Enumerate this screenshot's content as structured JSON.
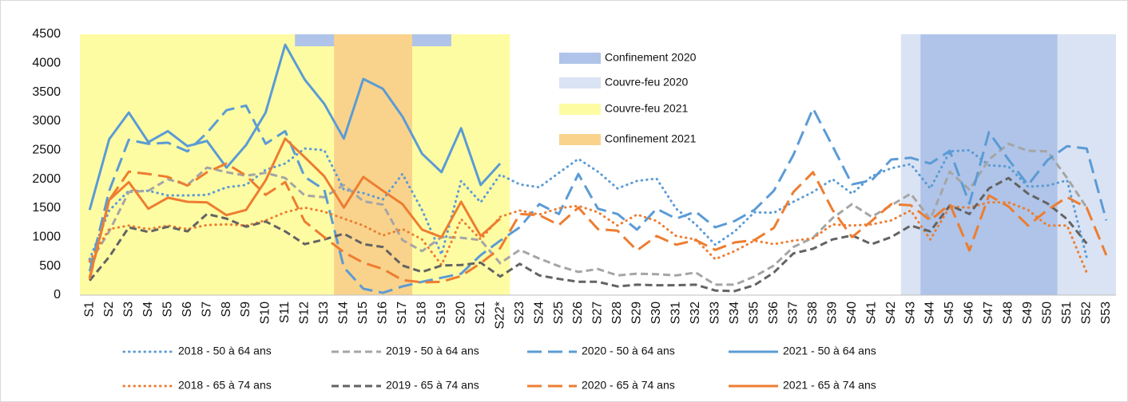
{
  "chart_data": {
    "type": "line",
    "categories": [
      "S1",
      "S2",
      "S3",
      "S4",
      "S5",
      "S6",
      "S7",
      "S8",
      "S9",
      "S10",
      "S11",
      "S12",
      "S13",
      "S14",
      "S15",
      "S16",
      "S17",
      "S18",
      "S19",
      "S20",
      "S21",
      "S22*",
      "S23",
      "S24",
      "S25",
      "S26",
      "S27",
      "S28",
      "S29",
      "S30",
      "S31",
      "S32",
      "S33",
      "S34",
      "S35",
      "S36",
      "S37",
      "S38",
      "S39",
      "S40",
      "S41",
      "S42",
      "S43",
      "S44",
      "S45",
      "S46",
      "S47",
      "S48",
      "S49",
      "S50",
      "S51",
      "S52",
      "S53"
    ],
    "ylim": [
      0,
      4500
    ],
    "yticks": [
      0,
      500,
      1000,
      1500,
      2000,
      2500,
      3000,
      3500,
      4000,
      4500
    ],
    "grid": false,
    "periods": [
      {
        "name": "Confinement 2020",
        "color": "#afc4e8",
        "ranges": [
          {
            "from": "S12",
            "to": "S19",
            "strip": true
          },
          {
            "from": "S44",
            "to": "S50"
          }
        ]
      },
      {
        "name": "Couvre-feu 2020",
        "color": "#dae3f3",
        "ranges": [
          {
            "from": "S43",
            "to": "S53"
          }
        ]
      },
      {
        "name": "Couvre-feu 2021",
        "color": "#fefca3",
        "ranges": [
          {
            "from": "S1",
            "to": "S22*"
          }
        ]
      },
      {
        "name": "Confinement 2021",
        "color": "#f9d38c",
        "ranges": [
          {
            "from": "S14",
            "to": "S17"
          }
        ]
      }
    ],
    "series": [
      {
        "name": "2018 - 50 à 64 ans",
        "color": "#5b9bd5",
        "dash": "dot",
        "values": [
          620,
          1460,
          1800,
          1800,
          1720,
          1720,
          1730,
          1860,
          1900,
          2160,
          2270,
          2530,
          2500,
          1820,
          1760,
          1650,
          2090,
          1470,
          700,
          1970,
          1600,
          2080,
          1910,
          1860,
          2110,
          2350,
          2130,
          1840,
          1970,
          2010,
          1490,
          1220,
          870,
          1100,
          1430,
          1420,
          1610,
          1780,
          2000,
          1750,
          2050,
          2190,
          2260,
          1840,
          2480,
          2500,
          2240,
          2220,
          1870,
          1890,
          1980,
          650,
          null
        ]
      },
      {
        "name": "2019 - 50 à 64 ans",
        "color": "#a5a5a5",
        "dash": "dash",
        "values": [
          550,
          1100,
          1780,
          1800,
          2000,
          1900,
          2200,
          2120,
          2060,
          2110,
          2020,
          1720,
          1690,
          1900,
          1620,
          1560,
          950,
          760,
          1000,
          990,
          950,
          550,
          780,
          630,
          500,
          400,
          450,
          340,
          370,
          360,
          340,
          390,
          180,
          180,
          320,
          510,
          830,
          990,
          1330,
          1570,
          1350,
          1550,
          1750,
          1310,
          2130,
          1820,
          2340,
          2610,
          2490,
          2480,
          2020,
          1510,
          null
        ]
      },
      {
        "name": "2020 - 50 à 64 ans",
        "color": "#5b9bd5",
        "dash": "longdash",
        "values": [
          410,
          1800,
          2680,
          2610,
          2630,
          2480,
          2800,
          3190,
          3270,
          2610,
          2830,
          2040,
          1820,
          480,
          110,
          40,
          150,
          230,
          300,
          370,
          690,
          940,
          1170,
          1570,
          1400,
          2090,
          1490,
          1400,
          1130,
          1490,
          1320,
          1440,
          1170,
          1280,
          1470,
          1800,
          2420,
          3220,
          2570,
          1910,
          1980,
          2340,
          2370,
          2270,
          2490,
          1580,
          2810,
          2340,
          1900,
          2330,
          2570,
          2530,
          1290
        ]
      },
      {
        "name": "2021 - 50 à 64 ans",
        "color": "#5b9bd5",
        "dash": "solid",
        "values": [
          1470,
          2690,
          3150,
          2640,
          2830,
          2570,
          2660,
          2200,
          2590,
          3150,
          4320,
          3720,
          3300,
          2700,
          3730,
          3560,
          3080,
          2440,
          2120,
          2880,
          1900,
          2270,
          null,
          null,
          null,
          null,
          null,
          null,
          null,
          null,
          null,
          null,
          null,
          null,
          null,
          null,
          null,
          null,
          null,
          null,
          null,
          null,
          null,
          null,
          null,
          null,
          null,
          null,
          null,
          null,
          null,
          null,
          null
        ]
      },
      {
        "name": "2018 - 65 à 74 ans",
        "color": "#ed7d31",
        "dash": "dot",
        "values": [
          590,
          1140,
          1200,
          1140,
          1200,
          1140,
          1210,
          1220,
          1200,
          1290,
          1430,
          1510,
          1440,
          1320,
          1200,
          1030,
          1140,
          960,
          520,
          1310,
          960,
          1350,
          1460,
          1390,
          1500,
          1540,
          1430,
          1200,
          1390,
          1280,
          1020,
          960,
          620,
          760,
          940,
          880,
          940,
          980,
          1220,
          1200,
          1220,
          1290,
          1460,
          960,
          1530,
          1510,
          1600,
          1600,
          1470,
          1200,
          1200,
          390,
          null
        ]
      },
      {
        "name": "2019 - 65 à 74 ans",
        "color": "#636363",
        "dash": "dash",
        "values": [
          250,
          660,
          1170,
          1090,
          1180,
          1100,
          1400,
          1320,
          1180,
          1270,
          1100,
          880,
          960,
          1060,
          880,
          830,
          510,
          400,
          510,
          520,
          560,
          320,
          540,
          340,
          280,
          230,
          230,
          150,
          180,
          170,
          170,
          180,
          80,
          70,
          170,
          390,
          720,
          800,
          960,
          1030,
          880,
          1000,
          1200,
          1100,
          1550,
          1400,
          1840,
          2020,
          1750,
          1580,
          1310,
          890,
          null
        ]
      },
      {
        "name": "2020 - 65 à 74 ans",
        "color": "#ed7d31",
        "dash": "longdash",
        "values": [
          280,
          1640,
          2130,
          2090,
          2040,
          1890,
          2120,
          2270,
          2060,
          1730,
          1950,
          1270,
          1000,
          740,
          560,
          450,
          260,
          220,
          230,
          330,
          550,
          810,
          1400,
          1380,
          1210,
          1510,
          1140,
          1110,
          770,
          1020,
          870,
          950,
          780,
          910,
          950,
          1160,
          1780,
          2120,
          1470,
          1000,
          1280,
          1570,
          1550,
          1290,
          1570,
          770,
          1720,
          1530,
          1200,
          1470,
          1690,
          1510,
          690
        ]
      },
      {
        "name": "2021 - 65 à 74 ans",
        "color": "#ed7d31",
        "dash": "solid",
        "values": [
          300,
          1640,
          1950,
          1490,
          1680,
          1610,
          1600,
          1380,
          1470,
          1980,
          2700,
          2380,
          2050,
          1510,
          2040,
          1800,
          1570,
          1130,
          1000,
          1610,
          1020,
          1320,
          null,
          null,
          null,
          null,
          null,
          null,
          null,
          null,
          null,
          null,
          null,
          null,
          null,
          null,
          null,
          null,
          null,
          null,
          null,
          null,
          null,
          null,
          null,
          null,
          null,
          null,
          null,
          null,
          null,
          null,
          null
        ]
      }
    ]
  }
}
